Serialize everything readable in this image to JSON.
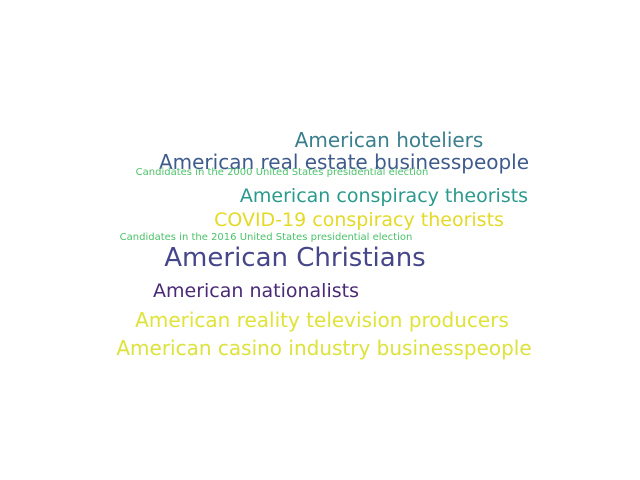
{
  "words": [
    {
      "text": "American hoteliers",
      "color": "#3b7f8e"
    },
    {
      "text": "American real estate businesspeople",
      "color": "#3f5a8c"
    },
    {
      "text": "Candidates in the 2000 United States presidential election",
      "color": "#4ec26b"
    },
    {
      "text": "American conspiracy theorists",
      "color": "#2a9a8c"
    },
    {
      "text": "COVID-19 conspiracy theorists",
      "color": "#e3da28"
    },
    {
      "text": "Candidates in the 2016 United States presidential election",
      "color": "#4cc26a"
    },
    {
      "text": "American Christians",
      "color": "#46468a"
    },
    {
      "text": "American nationalists",
      "color": "#4a2a76"
    },
    {
      "text": "American reality television producers",
      "color": "#dfe33a"
    },
    {
      "text": "American casino industry businesspeople",
      "color": "#dde23c"
    }
  ]
}
